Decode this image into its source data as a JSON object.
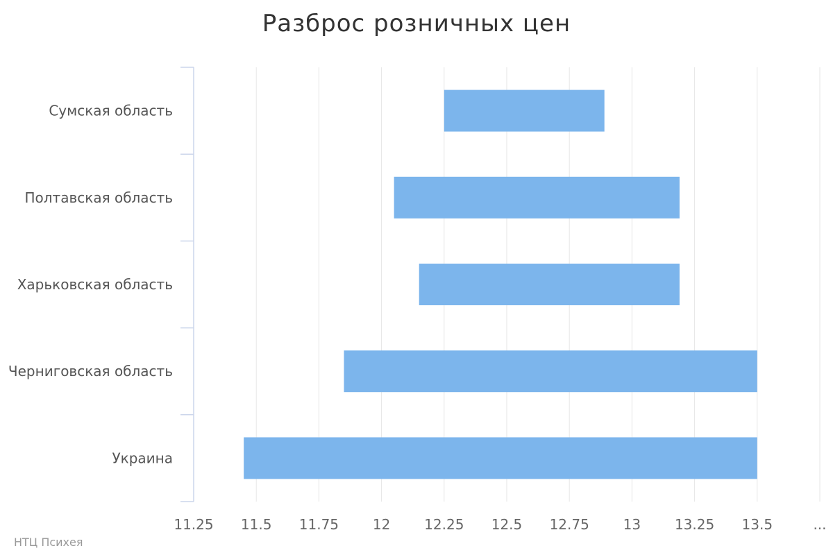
{
  "chart_data": {
    "type": "bar",
    "title": "Разброс розничных цен",
    "categories": [
      "Сумская область",
      "Полтавская область",
      "Харьковская область",
      "Черниговская область",
      "Украина"
    ],
    "series": [
      {
        "ranges": [
          [
            12.25,
            12.89
          ],
          [
            12.05,
            13.19
          ],
          [
            12.15,
            13.19
          ],
          [
            11.85,
            13.5
          ],
          [
            11.45,
            13.5
          ]
        ]
      }
    ],
    "xlim": [
      11.25,
      13.75
    ],
    "x_ticks": [
      "11.25",
      "11.5",
      "11.75",
      "12",
      "12.25",
      "12.5",
      "12.75",
      "13",
      "13.25",
      "13.5",
      "..."
    ],
    "grid": true,
    "bar_color": "#7cb5ec",
    "grid_color": "#e6e6e6",
    "axis_color": "#ccd6eb"
  },
  "credits": "НТЦ Психея"
}
